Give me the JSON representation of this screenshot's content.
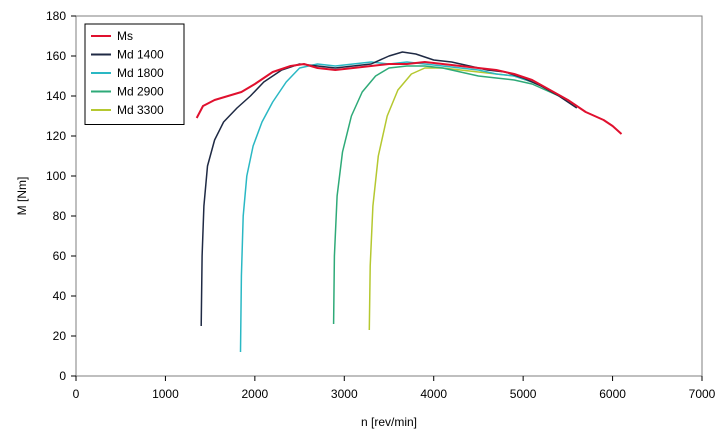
{
  "chart_data": {
    "type": "line",
    "xlabel": "n   [rev/min]",
    "ylabel": "M   [Nm]",
    "xlim": [
      0,
      7000
    ],
    "ylim": [
      0,
      180
    ],
    "xticks": [
      0,
      1000,
      2000,
      3000,
      4000,
      5000,
      6000,
      7000
    ],
    "yticks": [
      0,
      20,
      40,
      60,
      80,
      100,
      120,
      140,
      160,
      180
    ],
    "grid": false,
    "legend_position": "top-left",
    "series": [
      {
        "name": "Ms",
        "color": "#e0102e",
        "points": [
          [
            1350,
            129
          ],
          [
            1420,
            135
          ],
          [
            1550,
            138
          ],
          [
            1700,
            140
          ],
          [
            1850,
            142
          ],
          [
            2000,
            146
          ],
          [
            2200,
            152
          ],
          [
            2400,
            155
          ],
          [
            2550,
            156
          ],
          [
            2700,
            154
          ],
          [
            2900,
            153
          ],
          [
            3100,
            154
          ],
          [
            3300,
            155
          ],
          [
            3500,
            156
          ],
          [
            3700,
            156
          ],
          [
            3900,
            157
          ],
          [
            4100,
            156
          ],
          [
            4300,
            155
          ],
          [
            4500,
            154
          ],
          [
            4700,
            153
          ],
          [
            4900,
            151
          ],
          [
            5100,
            148
          ],
          [
            5300,
            143
          ],
          [
            5500,
            138
          ],
          [
            5700,
            132
          ],
          [
            5900,
            128
          ],
          [
            6000,
            125
          ],
          [
            6100,
            121
          ]
        ]
      },
      {
        "name": "Md 1400",
        "color": "#1f2a44",
        "points": [
          [
            1400,
            25
          ],
          [
            1410,
            60
          ],
          [
            1430,
            85
          ],
          [
            1470,
            105
          ],
          [
            1550,
            118
          ],
          [
            1650,
            127
          ],
          [
            1800,
            134
          ],
          [
            1950,
            140
          ],
          [
            2100,
            147
          ],
          [
            2300,
            153
          ],
          [
            2500,
            156
          ],
          [
            2700,
            155
          ],
          [
            2900,
            154
          ],
          [
            3100,
            155
          ],
          [
            3300,
            156
          ],
          [
            3500,
            160
          ],
          [
            3650,
            162
          ],
          [
            3800,
            161
          ],
          [
            4000,
            158
          ],
          [
            4200,
            157
          ],
          [
            4400,
            155
          ],
          [
            4600,
            153
          ],
          [
            4800,
            152
          ],
          [
            5000,
            149
          ],
          [
            5200,
            145
          ],
          [
            5400,
            140
          ],
          [
            5600,
            134
          ]
        ]
      },
      {
        "name": "Md 1800",
        "color": "#2ab8c4",
        "points": [
          [
            1840,
            12
          ],
          [
            1850,
            50
          ],
          [
            1870,
            80
          ],
          [
            1910,
            100
          ],
          [
            1980,
            115
          ],
          [
            2080,
            127
          ],
          [
            2200,
            137
          ],
          [
            2350,
            147
          ],
          [
            2500,
            154
          ],
          [
            2700,
            156
          ],
          [
            2900,
            155
          ],
          [
            3100,
            156
          ],
          [
            3300,
            157
          ],
          [
            3500,
            156
          ],
          [
            3700,
            157
          ],
          [
            3900,
            156
          ],
          [
            4100,
            155
          ],
          [
            4300,
            154
          ],
          [
            4500,
            153
          ],
          [
            4700,
            151
          ],
          [
            4900,
            150
          ],
          [
            5100,
            147
          ],
          [
            5300,
            143
          ],
          [
            5500,
            138
          ],
          [
            5600,
            135
          ]
        ]
      },
      {
        "name": "Md 2900",
        "color": "#2eaa78",
        "points": [
          [
            2880,
            26
          ],
          [
            2890,
            60
          ],
          [
            2920,
            90
          ],
          [
            2980,
            112
          ],
          [
            3080,
            130
          ],
          [
            3200,
            142
          ],
          [
            3350,
            150
          ],
          [
            3500,
            154
          ],
          [
            3700,
            155
          ],
          [
            3900,
            155
          ],
          [
            4100,
            154
          ],
          [
            4300,
            152
          ],
          [
            4500,
            150
          ],
          [
            4700,
            149
          ],
          [
            4900,
            148
          ],
          [
            5100,
            146
          ],
          [
            5300,
            142
          ],
          [
            5500,
            138
          ],
          [
            5600,
            135
          ]
        ]
      },
      {
        "name": "Md 3300",
        "color": "#b5c830",
        "points": [
          [
            3280,
            23
          ],
          [
            3290,
            55
          ],
          [
            3320,
            85
          ],
          [
            3380,
            110
          ],
          [
            3480,
            130
          ],
          [
            3600,
            143
          ],
          [
            3750,
            151
          ],
          [
            3900,
            154
          ],
          [
            4100,
            154
          ],
          [
            4300,
            153
          ],
          [
            4500,
            152
          ],
          [
            4700,
            151
          ],
          [
            4900,
            150
          ],
          [
            5100,
            147
          ],
          [
            5300,
            143
          ],
          [
            5500,
            138
          ],
          [
            5600,
            135
          ]
        ]
      }
    ]
  }
}
